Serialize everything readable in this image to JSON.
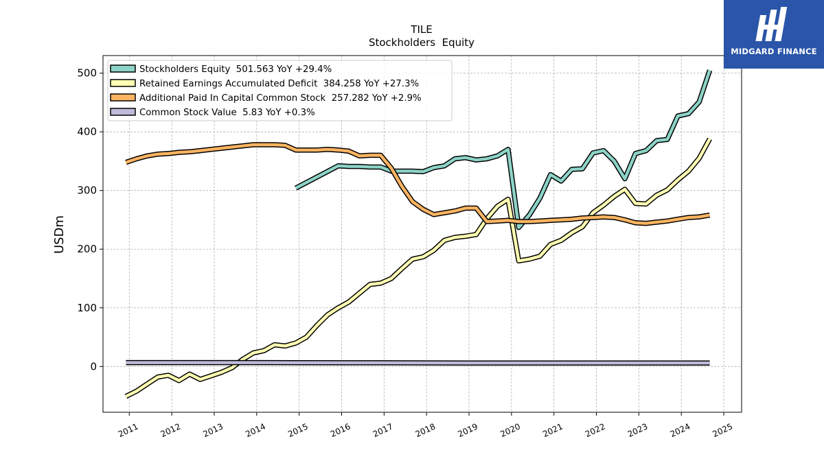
{
  "brand": {
    "name": "MIDGARD FINANCE",
    "background": "#2a55a8"
  },
  "chart_data": {
    "type": "line",
    "title": "TILE",
    "subtitle": "Stockholders  Equity",
    "xlabel": "",
    "ylabel": "USDm",
    "xlim": [
      2010.38,
      2025.42
    ],
    "ylim": [
      -78,
      530
    ],
    "yticks": [
      0,
      100,
      200,
      300,
      400,
      500
    ],
    "xticks": [
      "2011",
      "2012",
      "2013",
      "2014",
      "2015",
      "2016",
      "2017",
      "2018",
      "2019",
      "2020",
      "2021",
      "2022",
      "2023",
      "2024",
      "2025"
    ],
    "grid": true,
    "legend_position": "top-left",
    "series": [
      {
        "name": "Stockholders Equity  501.563 YoY +29.4%",
        "color": "#8dd3c7",
        "x": [
          2014.92,
          2015.92,
          2016.17,
          2016.42,
          2016.67,
          2016.92,
          2017.17,
          2017.42,
          2017.67,
          2017.92,
          2018.17,
          2018.42,
          2018.67,
          2018.92,
          2019.17,
          2019.42,
          2019.67,
          2019.92,
          2020.17,
          2020.42,
          2020.67,
          2020.92,
          2021.17,
          2021.42,
          2021.67,
          2021.92,
          2022.17,
          2022.42,
          2022.67,
          2022.92,
          2023.17,
          2023.42,
          2023.67,
          2023.92,
          2024.17,
          2024.42,
          2024.67
        ],
        "y": [
          304,
          342,
          341,
          341,
          340,
          340,
          333,
          333,
          333,
          332,
          339,
          342,
          354,
          356,
          352,
          354,
          359,
          370,
          237,
          258,
          287,
          327,
          316,
          336,
          337,
          364,
          368,
          350,
          320,
          363,
          368,
          385,
          387,
          427,
          431,
          451,
          505
        ]
      },
      {
        "name": "Retained Earnings Accumulated Deficit  384.258 YoY +27.3%",
        "color": "#ffffb3",
        "x": [
          2010.92,
          2011.17,
          2011.42,
          2011.67,
          2011.92,
          2012.17,
          2012.42,
          2012.67,
          2012.92,
          2013.17,
          2013.42,
          2013.67,
          2013.92,
          2014.17,
          2014.42,
          2014.67,
          2014.92,
          2015.17,
          2015.42,
          2015.67,
          2015.92,
          2016.17,
          2016.42,
          2016.67,
          2016.92,
          2017.17,
          2017.42,
          2017.67,
          2017.92,
          2018.17,
          2018.42,
          2018.67,
          2018.92,
          2019.17,
          2019.42,
          2019.67,
          2019.92,
          2020.17,
          2020.42,
          2020.67,
          2020.92,
          2021.17,
          2021.42,
          2021.67,
          2021.92,
          2022.17,
          2022.42,
          2022.67,
          2022.92,
          2023.17,
          2023.42,
          2023.67,
          2023.92,
          2024.17,
          2024.42,
          2024.67
        ],
        "y": [
          -51,
          -42,
          -30,
          -18,
          -15,
          -24,
          -13,
          -22,
          -16,
          -10,
          -2,
          12,
          23,
          27,
          37,
          35,
          40,
          50,
          70,
          88,
          100,
          110,
          125,
          140,
          142,
          150,
          167,
          183,
          187,
          198,
          215,
          220,
          222,
          225,
          252,
          273,
          285,
          180,
          183,
          188,
          208,
          215,
          228,
          238,
          262,
          275,
          290,
          302,
          278,
          277,
          292,
          301,
          318,
          333,
          355,
          388
        ]
      },
      {
        "name": "Additional Paid In Capital Common Stock  257.282 YoY +2.9%",
        "color": "#fdb462",
        "x": [
          2010.92,
          2011.17,
          2011.42,
          2011.67,
          2011.92,
          2012.17,
          2012.42,
          2012.67,
          2012.92,
          2013.17,
          2013.42,
          2013.67,
          2013.92,
          2014.17,
          2014.42,
          2014.67,
          2014.92,
          2015.17,
          2015.42,
          2015.67,
          2015.92,
          2016.17,
          2016.42,
          2016.67,
          2016.92,
          2017.17,
          2017.42,
          2017.67,
          2017.92,
          2018.17,
          2018.42,
          2018.67,
          2018.92,
          2019.17,
          2019.42,
          2019.67,
          2019.92,
          2020.17,
          2020.42,
          2020.67,
          2020.92,
          2021.17,
          2021.42,
          2021.67,
          2021.92,
          2022.17,
          2022.42,
          2022.67,
          2022.92,
          2023.17,
          2023.42,
          2023.67,
          2023.92,
          2024.17,
          2024.42,
          2024.67
        ],
        "y": [
          348,
          354,
          359,
          362,
          363,
          365,
          366,
          368,
          370,
          372,
          374,
          376,
          378,
          378,
          378,
          377,
          369,
          369,
          369,
          370,
          369,
          367,
          359,
          360,
          360,
          338,
          307,
          281,
          268,
          259,
          262,
          265,
          270,
          270,
          247,
          248,
          249,
          247,
          247,
          248,
          249,
          250,
          251,
          253,
          254,
          255,
          254,
          250,
          245,
          244,
          246,
          248,
          251,
          254,
          255,
          258
        ]
      },
      {
        "name": "Common Stock Value  5.83 YoY +0.3%",
        "color": "#bebada",
        "x": [
          2010.92,
          2012.92,
          2014.92,
          2016.92,
          2018.92,
          2020.92,
          2022.92,
          2024.67
        ],
        "y": [
          6.6,
          6.6,
          6.5,
          6.3,
          6.0,
          5.9,
          5.8,
          5.8
        ]
      }
    ]
  }
}
